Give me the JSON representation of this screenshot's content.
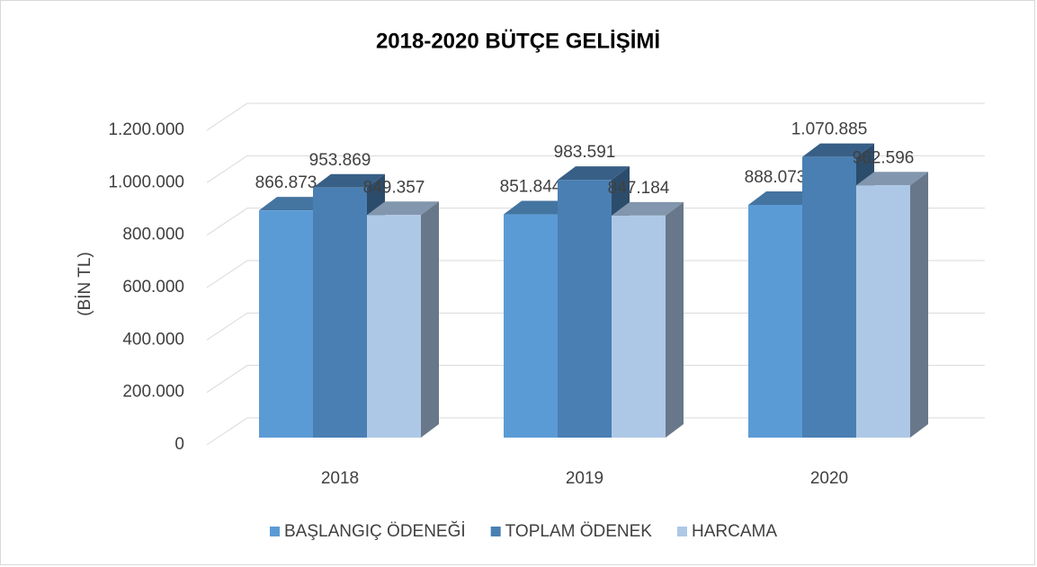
{
  "chart_data": {
    "type": "bar3d",
    "title": "2018-2020 BÜTÇE GELİŞİMİ",
    "y_label": "(BİN TL)",
    "categories": [
      "2018",
      "2019",
      "2020"
    ],
    "series": [
      {
        "name": "BAŞLANGIÇ ÖDENEĞİ",
        "color": "#5b9bd5",
        "values": [
          866873,
          851844,
          888073
        ],
        "value_labels": [
          "866.873",
          "851.844",
          "888.073"
        ]
      },
      {
        "name": "TOPLAM ÖDENEK",
        "color": "#4a7fb3",
        "values": [
          953869,
          983591,
          1070885
        ],
        "value_labels": [
          "953.869",
          "983.591",
          "1.070.885"
        ]
      },
      {
        "name": "HARCAMA",
        "color": "#adc8e6",
        "values": [
          849357,
          847184,
          962596
        ],
        "value_labels": [
          "849.357",
          "847.184",
          "962.596"
        ]
      }
    ],
    "ylim": [
      0,
      1200000
    ],
    "yticks": [
      0,
      {
        "value": 200000,
        "label": "200.000"
      },
      {
        "value": 400000,
        "label": "400.000"
      },
      {
        "value": 600000,
        "label": "600.000"
      },
      {
        "value": 800000,
        "label": "800.000"
      },
      {
        "value": 1000000,
        "label": "1.000.000"
      },
      {
        "value": 1200000,
        "label": "1.200.000"
      }
    ],
    "grid": true,
    "legend": "bottom"
  }
}
